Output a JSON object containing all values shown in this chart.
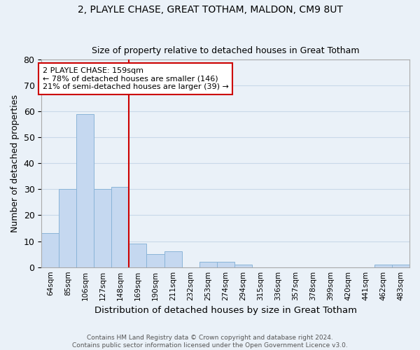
{
  "title1": "2, PLAYLE CHASE, GREAT TOTHAM, MALDON, CM9 8UT",
  "title2": "Size of property relative to detached houses in Great Totham",
  "xlabel": "Distribution of detached houses by size in Great Totham",
  "ylabel": "Number of detached properties",
  "categories": [
    "64sqm",
    "85sqm",
    "106sqm",
    "127sqm",
    "148sqm",
    "169sqm",
    "190sqm",
    "211sqm",
    "232sqm",
    "253sqm",
    "274sqm",
    "294sqm",
    "315sqm",
    "336sqm",
    "357sqm",
    "378sqm",
    "399sqm",
    "420sqm",
    "441sqm",
    "462sqm",
    "483sqm"
  ],
  "values": [
    13,
    30,
    59,
    30,
    31,
    9,
    5,
    6,
    0,
    2,
    2,
    1,
    0,
    0,
    0,
    0,
    0,
    0,
    0,
    1,
    1
  ],
  "bar_color": "#c5d8f0",
  "bar_edge_color": "#8ab4d8",
  "vline_x_index": 4.5,
  "vline_color": "#cc0000",
  "annotation_line1": "2 PLAYLE CHASE: 159sqm",
  "annotation_line2": "← 78% of detached houses are smaller (146)",
  "annotation_line3": "21% of semi-detached houses are larger (39) →",
  "annotation_box_color": "#ffffff",
  "annotation_box_edge_color": "#cc0000",
  "ylim": [
    0,
    80
  ],
  "yticks": [
    0,
    10,
    20,
    30,
    40,
    50,
    60,
    70,
    80
  ],
  "grid_color": "#c8d8e8",
  "background_color": "#eaf1f8",
  "footer": "Contains HM Land Registry data © Crown copyright and database right 2024.\nContains public sector information licensed under the Open Government Licence v3.0."
}
